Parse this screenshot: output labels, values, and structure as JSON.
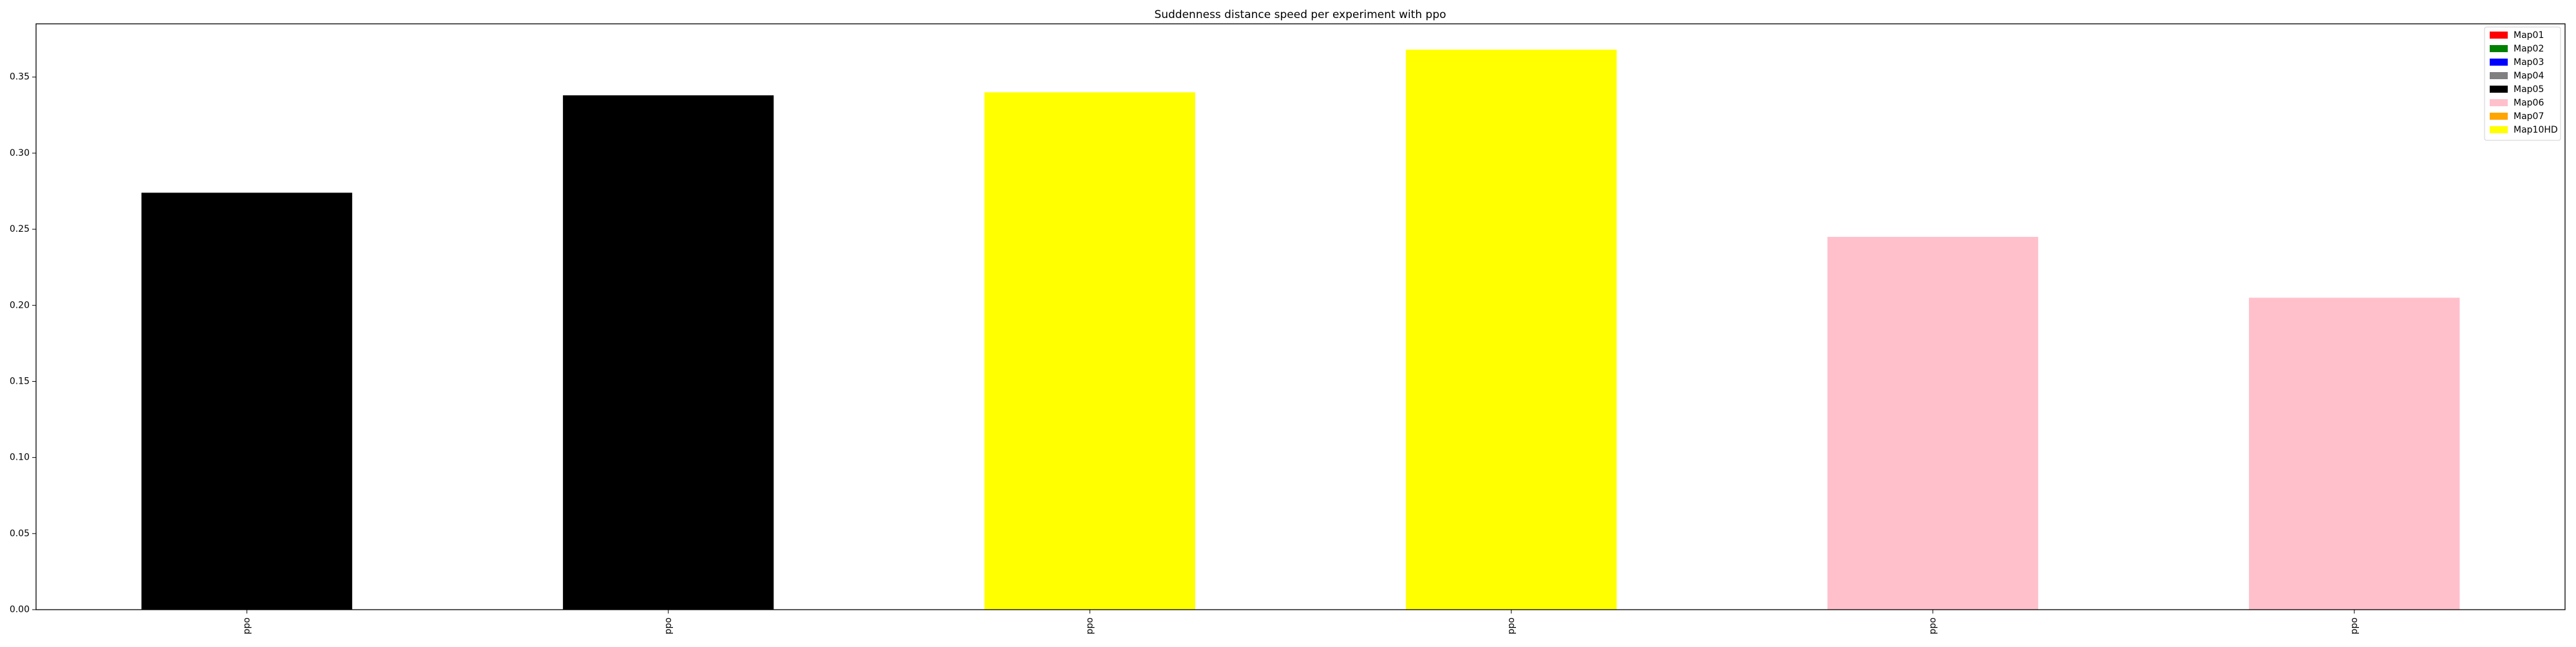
{
  "chart_data": {
    "type": "bar",
    "title": "Suddenness distance speed per experiment with ppo",
    "xlabel": "",
    "ylabel": "",
    "categories": [
      "ppo",
      "ppo",
      "ppo",
      "ppo",
      "ppo",
      "ppo"
    ],
    "values": [
      0.274,
      0.338,
      0.34,
      0.368,
      0.245,
      0.205
    ],
    "bar_series": [
      "Map05",
      "Map05",
      "Map10HD",
      "Map10HD",
      "Map06",
      "Map06"
    ],
    "ylim": [
      0,
      0.385
    ],
    "yticks": [
      0.0,
      0.05,
      0.1,
      0.15,
      0.2,
      0.25,
      0.3,
      0.35
    ],
    "ytick_labels": [
      "0.00",
      "0.05",
      "0.10",
      "0.15",
      "0.20",
      "0.25",
      "0.30",
      "0.35"
    ],
    "grid": false,
    "legend_position": "top-right",
    "legend": [
      {
        "name": "Map01",
        "color": "#ff0000"
      },
      {
        "name": "Map02",
        "color": "#008000"
      },
      {
        "name": "Map03",
        "color": "#0000ff"
      },
      {
        "name": "Map04",
        "color": "#808080"
      },
      {
        "name": "Map05",
        "color": "#000000"
      },
      {
        "name": "Map06",
        "color": "#ffc0cb"
      },
      {
        "name": "Map07",
        "color": "#ffa500"
      },
      {
        "name": "Map10HD",
        "color": "#ffff00"
      }
    ]
  }
}
